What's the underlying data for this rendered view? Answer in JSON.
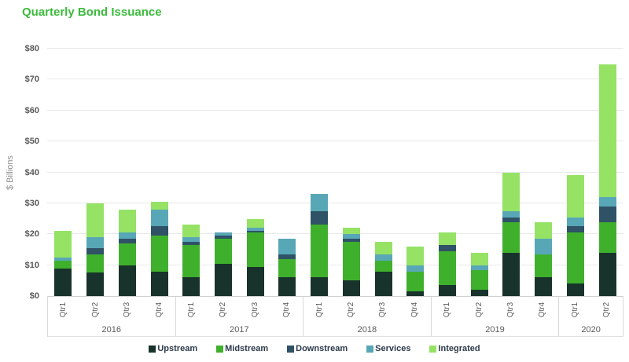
{
  "title": "Quarterly Bond Issuance",
  "chart_data": {
    "type": "bar",
    "stacked": true,
    "title": "Quarterly Bond Issuance",
    "ylabel": "$ Billions",
    "ylim": [
      0,
      80
    ],
    "y_tick_step": 10,
    "y_tick_labels": [
      "$0",
      "$10",
      "$20",
      "$30",
      "$40",
      "$50",
      "$60",
      "$70",
      "$80"
    ],
    "grid": true,
    "legend_position": "bottom",
    "groups": [
      {
        "year": "2016",
        "quarters": [
          "Qtr1",
          "Qtr2",
          "Qtr3",
          "Qtr4"
        ]
      },
      {
        "year": "2017",
        "quarters": [
          "Qtr1",
          "Qtr2",
          "Qtr3",
          "Qtr4"
        ]
      },
      {
        "year": "2018",
        "quarters": [
          "Qtr1",
          "Qtr2",
          "Qtr3",
          "Qtr4"
        ]
      },
      {
        "year": "2019",
        "quarters": [
          "Qtr1",
          "Qtr2",
          "Qtr3",
          "Qtr4"
        ]
      },
      {
        "year": "2020",
        "quarters": [
          "Qtr1",
          "Qtr2"
        ]
      }
    ],
    "categories": [
      "2016 Qtr1",
      "2016 Qtr2",
      "2016 Qtr3",
      "2016 Qtr4",
      "2017 Qtr1",
      "2017 Qtr2",
      "2017 Qtr3",
      "2017 Qtr4",
      "2018 Qtr1",
      "2018 Qtr2",
      "2018 Qtr3",
      "2018 Qtr4",
      "2019 Qtr1",
      "2019 Qtr2",
      "2019 Qtr3",
      "2019 Qtr4",
      "2020 Qtr1",
      "2020 Qtr2"
    ],
    "series": [
      {
        "name": "Upstream",
        "color": "#18332b",
        "values": [
          9,
          7.5,
          10,
          8,
          6,
          10.5,
          9.5,
          6,
          6,
          5,
          8,
          1.5,
          3.5,
          2,
          14,
          6,
          4,
          14
        ]
      },
      {
        "name": "Midstream",
        "color": "#3fb02c",
        "values": [
          2.5,
          6,
          7,
          11.5,
          10.5,
          8,
          11,
          6,
          17,
          12.5,
          3.5,
          6.5,
          11,
          6.5,
          10,
          7.5,
          16.5,
          10
        ]
      },
      {
        "name": "Downstream",
        "color": "#2f5266",
        "values": [
          0,
          2,
          1.5,
          3,
          1,
          1,
          0.5,
          1.5,
          4.5,
          1,
          0,
          0,
          2,
          0,
          1.5,
          0,
          2,
          5
        ]
      },
      {
        "name": "Services",
        "color": "#58a7b6",
        "values": [
          1,
          3.5,
          2,
          5.5,
          1.5,
          1,
          1,
          5,
          5.5,
          1.5,
          2,
          2,
          0,
          1.5,
          2,
          5,
          3,
          3
        ]
      },
      {
        "name": "Integrated",
        "color": "#95e265",
        "values": [
          8.5,
          11,
          7.5,
          2.5,
          4,
          0,
          3,
          0,
          0,
          2,
          4,
          6,
          4,
          4,
          12.5,
          5.5,
          13.5,
          43
        ]
      }
    ],
    "totals": [
      21,
      30,
      28,
      30.5,
      23,
      20.5,
      25,
      18.5,
      33,
      22,
      17.5,
      16,
      20.5,
      14,
      40,
      24,
      39,
      75
    ]
  },
  "colors": {
    "title": "#3cba3c",
    "gridline": "#e9e9e9",
    "axis_border": "#d9d9d9",
    "tick_text": "#595959",
    "legend_text": "#2b3a4a"
  }
}
